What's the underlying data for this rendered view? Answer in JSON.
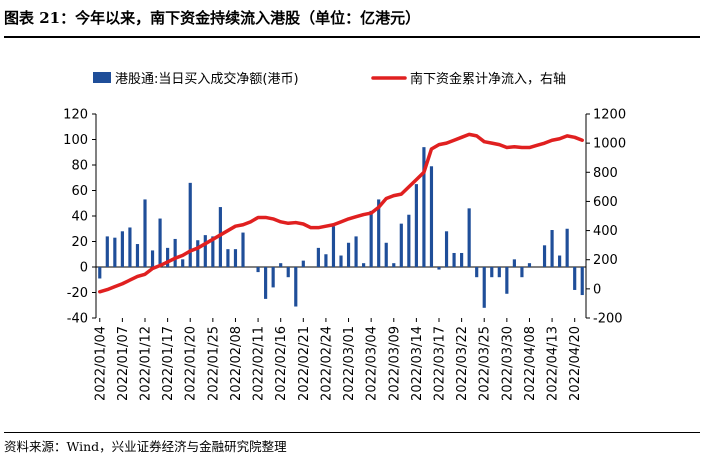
{
  "title": "图表 21：今年以来，南下资金持续流入港股（单位：亿港元）",
  "source": "资料来源：Wind，兴业证券经济与金融研究院整理",
  "chart_data": {
    "type": "bar+line",
    "legend": [
      "港股通:当日买入成交净额(港币)",
      "南下资金累计净流入，右轴"
    ],
    "colors": {
      "bar": "#1f4e99",
      "line": "#e02020"
    },
    "left_axis": {
      "min": -40,
      "max": 120,
      "step": 20,
      "ticks": [
        "-40",
        "-20",
        "0",
        "20",
        "40",
        "60",
        "80",
        "100",
        "120"
      ]
    },
    "right_axis": {
      "min": -200,
      "max": 1200,
      "step": 200,
      "ticks": [
        "-200",
        "0",
        "200",
        "400",
        "600",
        "800",
        "1000",
        "1200"
      ]
    },
    "x_tick_labels": [
      "2022/01/04",
      "2022/01/07",
      "2022/01/12",
      "2022/01/17",
      "2022/01/20",
      "2022/01/25",
      "2022/02/08",
      "2022/02/11",
      "2022/02/16",
      "2022/02/21",
      "2022/02/24",
      "2022/03/01",
      "2022/03/04",
      "2022/03/09",
      "2022/03/14",
      "2022/03/17",
      "2022/03/22",
      "2022/03/25",
      "2022/03/30",
      "2022/04/08",
      "2022/04/13",
      "2022/04/20"
    ],
    "x_tick_every": 3,
    "daily_net_buy": [
      -9,
      24,
      23,
      28,
      31,
      18,
      53,
      13,
      38,
      15,
      22,
      6,
      66,
      21,
      25,
      24,
      47,
      14,
      14,
      27,
      0,
      -4,
      -25,
      -16,
      3,
      -8,
      -31,
      5,
      0,
      15,
      10,
      32,
      9,
      19,
      24,
      3,
      44,
      53,
      19,
      3,
      34,
      41,
      65,
      94,
      79,
      -2,
      28,
      11,
      11,
      46,
      -8,
      -32,
      -8,
      -8,
      -21,
      6,
      -8,
      3,
      0,
      17,
      29,
      9,
      30,
      -18,
      -22
    ],
    "cumulative_net_inflow": [
      -20,
      -5,
      15,
      35,
      60,
      85,
      100,
      140,
      160,
      185,
      210,
      230,
      260,
      280,
      310,
      340,
      370,
      400,
      430,
      440,
      460,
      490,
      490,
      480,
      460,
      450,
      455,
      445,
      420,
      420,
      430,
      440,
      460,
      480,
      495,
      510,
      520,
      560,
      620,
      640,
      650,
      700,
      750,
      800,
      960,
      990,
      1000,
      1020,
      1040,
      1060,
      1050,
      1010,
      1000,
      990,
      970,
      975,
      970,
      970,
      985,
      1000,
      1020,
      1030,
      1050,
      1040,
      1020
    ]
  }
}
